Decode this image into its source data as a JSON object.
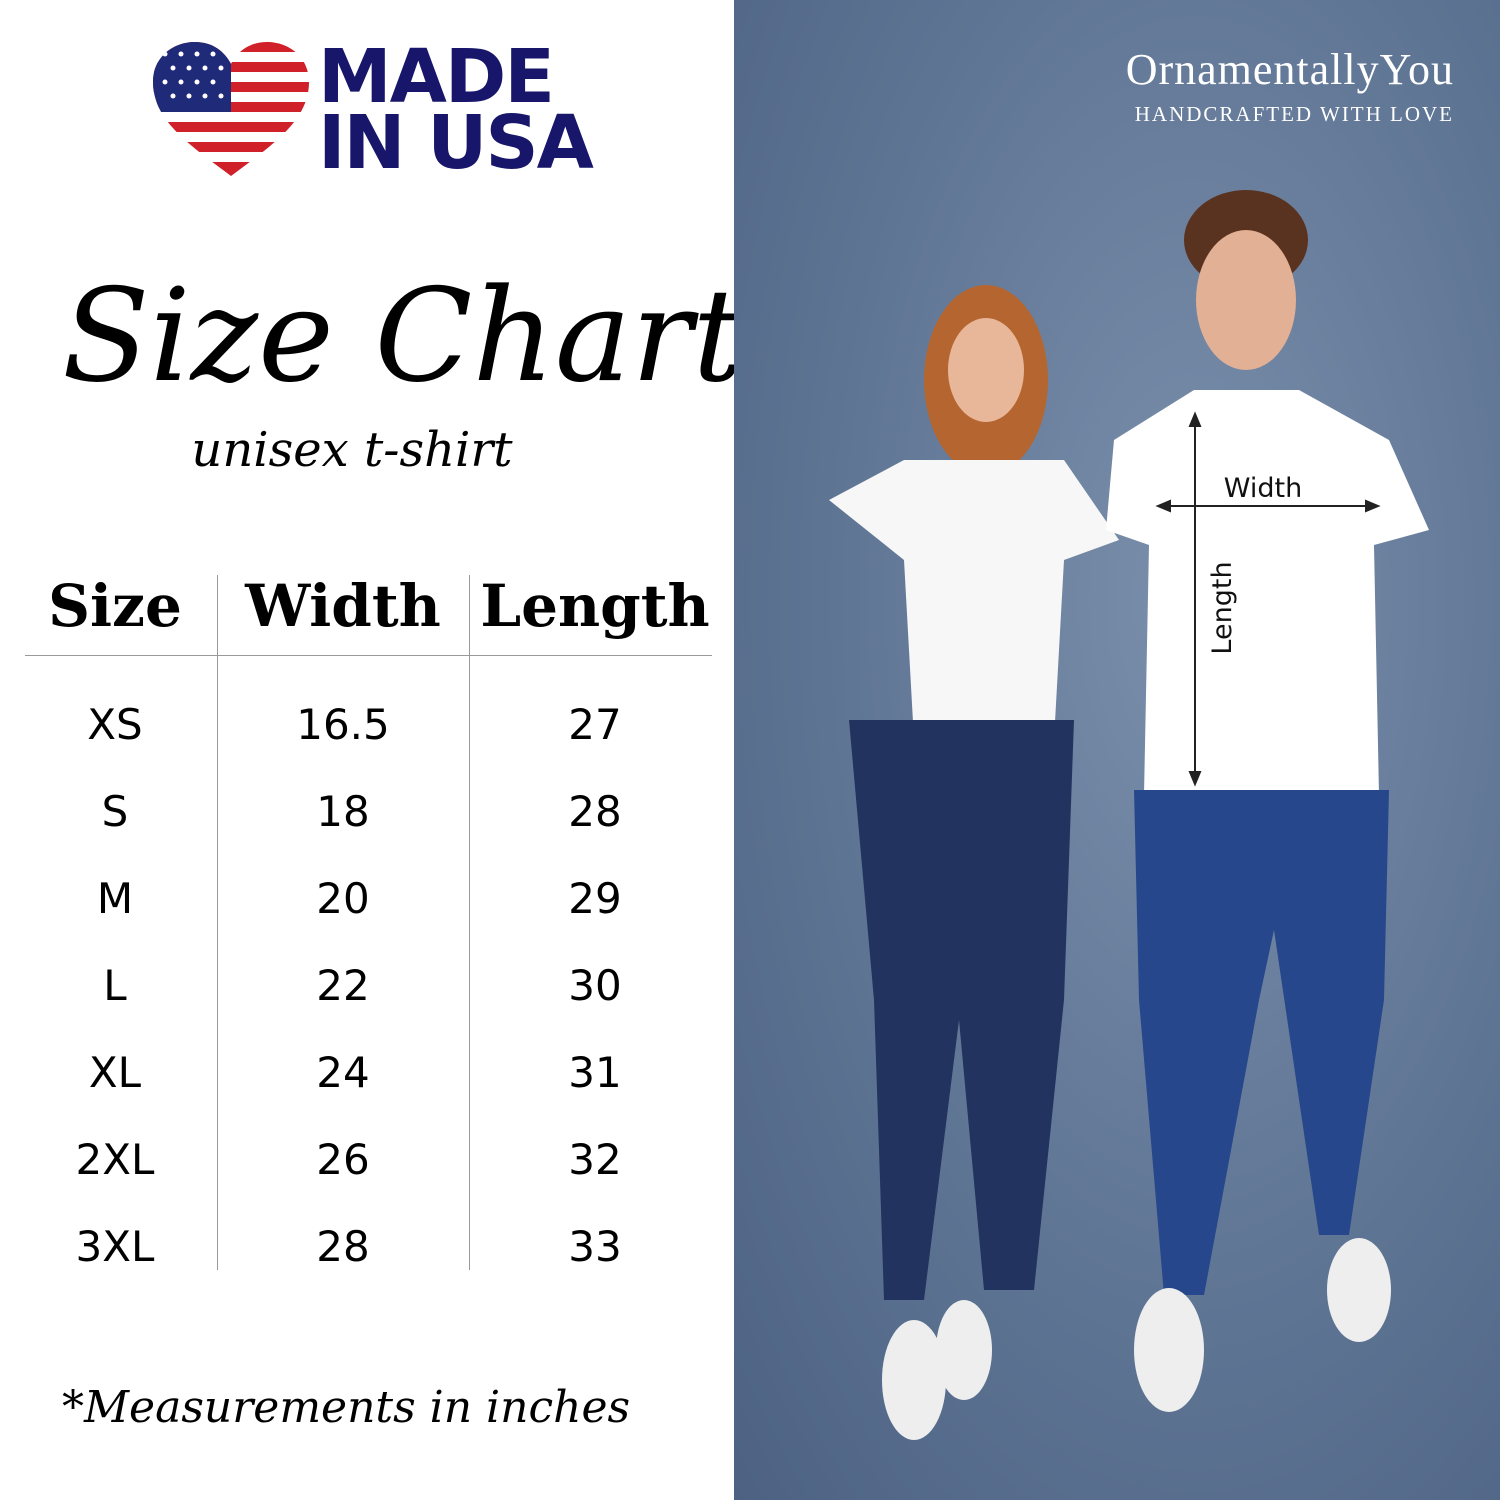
{
  "logo": {
    "line1": "MADE",
    "line2": "IN USA",
    "icon": "us-flag-heart-icon",
    "navy": "#17166b",
    "red": "#d0202a"
  },
  "title": "Size Chart",
  "subtitle": "unisex t-shirt",
  "table": {
    "headers": [
      "Size",
      "Width",
      "Length"
    ],
    "rows": [
      [
        "XS",
        "16.5",
        "27"
      ],
      [
        "S",
        "18",
        "28"
      ],
      [
        "M",
        "20",
        "29"
      ],
      [
        "L",
        "22",
        "30"
      ],
      [
        "XL",
        "24",
        "31"
      ],
      [
        "2XL",
        "26",
        "32"
      ],
      [
        "3XL",
        "28",
        "33"
      ]
    ]
  },
  "footnote": "*Measurements in inches",
  "brand": {
    "name": "OrnamentallyYou",
    "tagline": "HANDCRAFTED WITH LOVE"
  },
  "photo": {
    "width_label": "Width",
    "length_label": "Length",
    "background": "#5f7594"
  }
}
